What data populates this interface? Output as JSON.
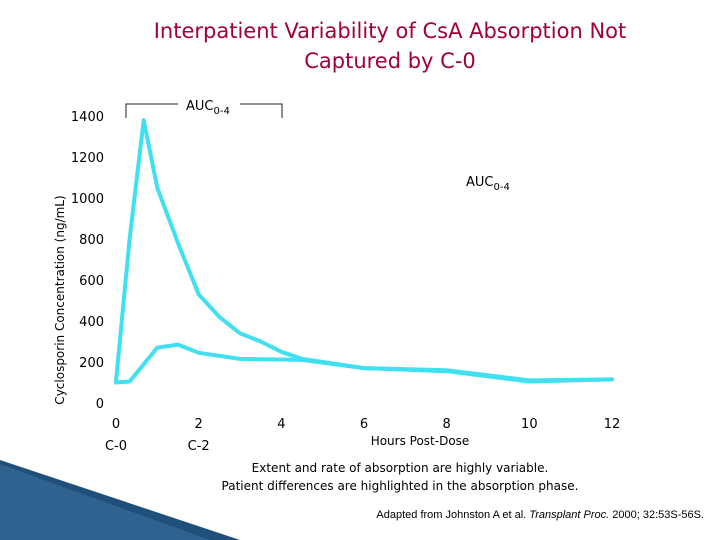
{
  "title": {
    "line1": "Interpatient Variability of CsA Absorption Not",
    "line2": "Captured by C-0"
  },
  "chart_data": {
    "type": "line",
    "ylabel": "Cyclosporin Concentration (ng/mL)",
    "xlabel": "Hours Post-Dose",
    "xlim": [
      0,
      12
    ],
    "ylim": [
      0,
      1400
    ],
    "x_ticks": [
      0,
      2,
      4,
      6,
      8,
      10,
      12
    ],
    "y_ticks": [
      0,
      200,
      400,
      600,
      800,
      1000,
      1200,
      1400
    ],
    "x_sub_labels": [
      {
        "x": 0,
        "label": "C-0"
      },
      {
        "x": 2,
        "label": "C-2"
      }
    ],
    "line_color": "#40e0f0",
    "series": [
      {
        "values": [
          [
            0,
            105
          ],
          [
            0.33,
            800
          ],
          [
            0.67,
            1380
          ],
          [
            1,
            1050
          ],
          [
            1.5,
            780
          ],
          [
            2,
            530
          ],
          [
            2.5,
            420
          ],
          [
            3,
            340
          ],
          [
            3.5,
            300
          ],
          [
            4,
            250
          ],
          [
            4.5,
            215
          ],
          [
            6,
            170
          ],
          [
            8,
            155
          ],
          [
            10,
            105
          ],
          [
            12,
            115
          ]
        ]
      },
      {
        "values": [
          [
            0,
            100
          ],
          [
            0.33,
            105
          ],
          [
            1,
            270
          ],
          [
            1.5,
            285
          ],
          [
            2,
            245
          ],
          [
            3,
            215
          ],
          [
            4.5,
            210
          ],
          [
            6,
            170
          ],
          [
            8,
            160
          ],
          [
            10,
            110
          ],
          [
            12,
            115
          ]
        ]
      }
    ],
    "annotations": [
      {
        "text_main": "AUC",
        "text_sub": "0-4",
        "anchor": "top-bracket"
      },
      {
        "text_main": "AUC",
        "text_sub": "0-4",
        "anchor": "right"
      }
    ]
  },
  "notes": {
    "line1": "Extent and rate of absorption are highly variable.",
    "line2": "Patient differences are highlighted in the absorption phase."
  },
  "citation": {
    "prefix": "Adapted from Johnston A et al.",
    "journal": "Transplant Proc.",
    "suffix": "2000; 32:53S-56S."
  },
  "colors": {
    "title": "#a0003c",
    "line": "#40e0f0",
    "corner_band": "#1f4f7a"
  }
}
